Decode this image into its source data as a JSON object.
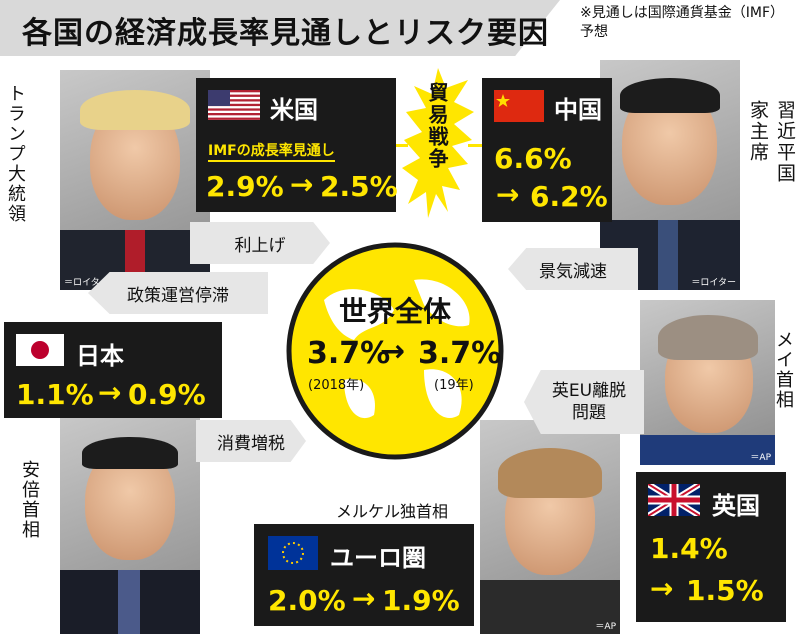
{
  "title": "各国の経済成長率見通しとリスク要因",
  "note": "※見通しは国際通貨基金（IMF）予想",
  "trade_war": "貿易戦争",
  "world": {
    "title": "世界全体",
    "from": "3.7%",
    "to": "3.7%",
    "from_year": "(2018年)",
    "to_year": "(19年)"
  },
  "us": {
    "name": "米国",
    "subtitle": "IMFの成長率見通し",
    "from": "2.9%",
    "to": "2.5%",
    "leader": "トランプ大統領"
  },
  "china": {
    "name": "中国",
    "from": "6.6%",
    "to": "6.2%",
    "leader": "習近平国家主席"
  },
  "japan": {
    "name": "日本",
    "from": "1.1%",
    "to": "0.9%",
    "leader": "安倍首相"
  },
  "eu": {
    "name": "ユーロ圏",
    "from": "2.0%",
    "to": "1.9%",
    "leader": "メルケル独首相"
  },
  "uk": {
    "name": "英国",
    "from": "1.4%",
    "to": "1.5%",
    "leader": "メイ首相"
  },
  "risks": {
    "rate_hike": "利上げ",
    "policy_stall": "政策運営停滞",
    "slowdown": "景気減速",
    "brexit": "英EU離脱問題",
    "tax": "消費増税"
  },
  "arrow": "→",
  "credits": {
    "reuters": "＝ロイター",
    "ap": "＝AP"
  },
  "colors": {
    "accent_yellow": "#ffe600",
    "box_black": "#1a1a1a",
    "tag_gray": "#e6e6e6"
  }
}
